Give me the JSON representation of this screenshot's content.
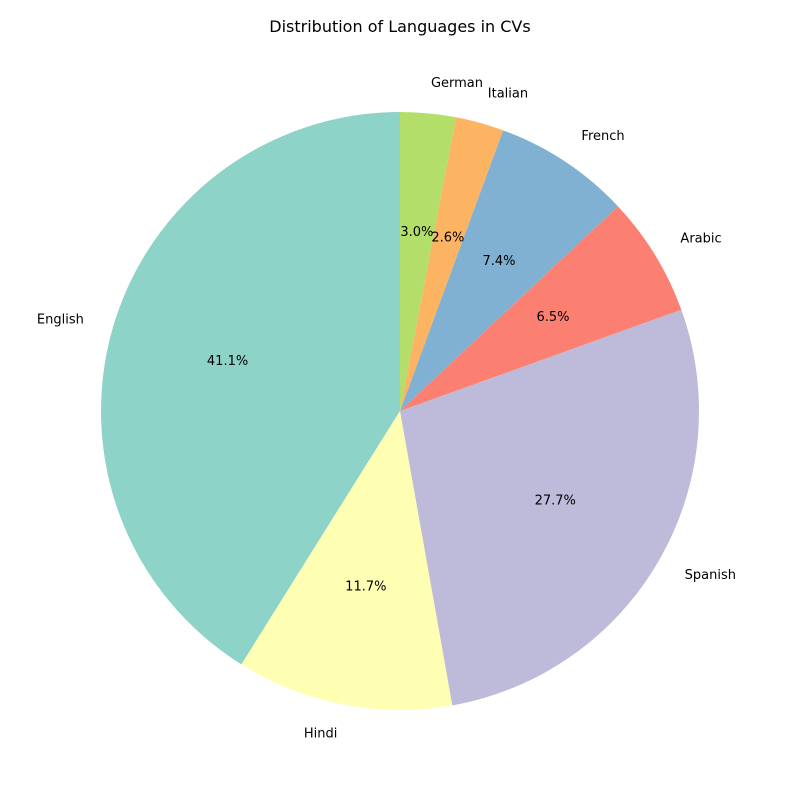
{
  "chart_data": {
    "type": "pie",
    "title": "Distribution of Languages in CVs",
    "start_angle_deg": 90,
    "direction": "counterclockwise",
    "slices": [
      {
        "label": "English",
        "value": 41.1,
        "pct_label": "41.1%",
        "color": "#8dd3c7"
      },
      {
        "label": "Hindi",
        "value": 11.7,
        "pct_label": "11.7%",
        "color": "#ffffb3"
      },
      {
        "label": "Spanish",
        "value": 27.7,
        "pct_label": "27.7%",
        "color": "#bebada"
      },
      {
        "label": "Arabic",
        "value": 6.5,
        "pct_label": "6.5%",
        "color": "#fb8072"
      },
      {
        "label": "French",
        "value": 7.4,
        "pct_label": "7.4%",
        "color": "#80b1d3"
      },
      {
        "label": "Italian",
        "value": 2.6,
        "pct_label": "2.6%",
        "color": "#fdb462"
      },
      {
        "label": "German",
        "value": 3.0,
        "pct_label": "3.0%",
        "color": "#b3de69"
      }
    ]
  }
}
